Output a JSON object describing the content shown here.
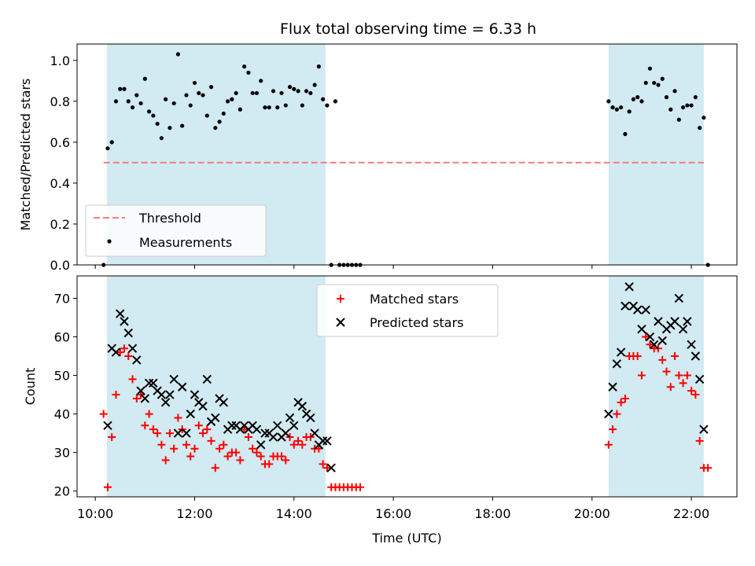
{
  "title": "Flux total observing time = 6.33 h",
  "colors": {
    "span": "#add8e6",
    "threshold": "#f08080",
    "measurement": "#000000",
    "matched": "#ff0000",
    "predicted": "#000000"
  },
  "chart_data": [
    {
      "type": "scatter",
      "ylabel": "Matched/Predicted stars",
      "xlabel": "",
      "xlim": [
        "09:38",
        "22:55"
      ],
      "ylim": [
        0,
        1.08
      ],
      "yticks": [
        "0.0",
        "0.2",
        "0.4",
        "0.6",
        "0.8",
        "1.0"
      ],
      "observing_windows": [
        [
          "10:14",
          "14:38"
        ],
        [
          "20:20",
          "22:15"
        ]
      ],
      "threshold": {
        "value": 0.5,
        "x_range": [
          "10:10",
          "22:15"
        ]
      },
      "legend": {
        "placement": "lower left",
        "entries": [
          "Threshold",
          "Measurements"
        ]
      },
      "series": [
        {
          "name": "Measurements",
          "points": [
            [
              "10:10",
              0.0
            ],
            [
              "10:15",
              0.57
            ],
            [
              "10:20",
              0.6
            ],
            [
              "10:25",
              0.8
            ],
            [
              "10:30",
              0.86
            ],
            [
              "10:35",
              0.86
            ],
            [
              "10:40",
              0.8
            ],
            [
              "10:45",
              0.77
            ],
            [
              "10:50",
              0.83
            ],
            [
              "10:55",
              0.79
            ],
            [
              "11:00",
              0.91
            ],
            [
              "11:05",
              0.75
            ],
            [
              "11:10",
              0.73
            ],
            [
              "11:15",
              0.69
            ],
            [
              "11:20",
              0.62
            ],
            [
              "11:25",
              0.81
            ],
            [
              "11:30",
              0.67
            ],
            [
              "11:35",
              0.79
            ],
            [
              "11:40",
              1.03
            ],
            [
              "11:45",
              0.68
            ],
            [
              "11:50",
              0.83
            ],
            [
              "11:55",
              0.78
            ],
            [
              "12:00",
              0.89
            ],
            [
              "12:05",
              0.84
            ],
            [
              "12:10",
              0.83
            ],
            [
              "12:15",
              0.73
            ],
            [
              "12:20",
              0.87
            ],
            [
              "12:25",
              0.67
            ],
            [
              "12:30",
              0.7
            ],
            [
              "12:35",
              0.74
            ],
            [
              "12:40",
              0.8
            ],
            [
              "12:45",
              0.81
            ],
            [
              "12:50",
              0.84
            ],
            [
              "12:55",
              0.76
            ],
            [
              "13:00",
              0.97
            ],
            [
              "13:05",
              0.94
            ],
            [
              "13:10",
              0.84
            ],
            [
              "13:15",
              0.84
            ],
            [
              "13:20",
              0.9
            ],
            [
              "13:25",
              0.77
            ],
            [
              "13:30",
              0.77
            ],
            [
              "13:35",
              0.85
            ],
            [
              "13:40",
              0.77
            ],
            [
              "13:45",
              0.84
            ],
            [
              "13:50",
              0.78
            ],
            [
              "13:55",
              0.87
            ],
            [
              "14:00",
              0.86
            ],
            [
              "14:05",
              0.85
            ],
            [
              "14:10",
              0.78
            ],
            [
              "14:15",
              0.85
            ],
            [
              "14:20",
              0.84
            ],
            [
              "14:25",
              0.88
            ],
            [
              "14:30",
              0.97
            ],
            [
              "14:35",
              0.81
            ],
            [
              "14:40",
              0.78
            ],
            [
              "14:45",
              0.0
            ],
            [
              "14:50",
              0.8
            ],
            [
              "14:55",
              0.0
            ],
            [
              "15:00",
              0.0
            ],
            [
              "15:05",
              0.0
            ],
            [
              "15:10",
              0.0
            ],
            [
              "15:15",
              0.0
            ],
            [
              "15:20",
              0.0
            ],
            [
              "20:20",
              0.8
            ],
            [
              "20:25",
              0.77
            ],
            [
              "20:30",
              0.76
            ],
            [
              "20:35",
              0.77
            ],
            [
              "20:40",
              0.64
            ],
            [
              "20:45",
              0.75
            ],
            [
              "20:50",
              0.81
            ],
            [
              "20:55",
              0.82
            ],
            [
              "21:00",
              0.8
            ],
            [
              "21:05",
              0.89
            ],
            [
              "21:10",
              0.96
            ],
            [
              "21:15",
              0.89
            ],
            [
              "21:20",
              0.88
            ],
            [
              "21:25",
              0.91
            ],
            [
              "21:30",
              0.82
            ],
            [
              "21:35",
              0.76
            ],
            [
              "21:40",
              0.85
            ],
            [
              "21:45",
              0.71
            ],
            [
              "21:50",
              0.77
            ],
            [
              "21:55",
              0.78
            ],
            [
              "22:00",
              0.78
            ],
            [
              "22:05",
              0.82
            ],
            [
              "22:10",
              0.67
            ],
            [
              "22:15",
              0.72
            ],
            [
              "22:20",
              0.0
            ]
          ]
        }
      ]
    },
    {
      "type": "scatter",
      "ylabel": "Count",
      "xlabel": "Time (UTC)",
      "xlim": [
        "09:38",
        "22:55"
      ],
      "ylim": [
        18.5,
        75.8
      ],
      "xticks": [
        "10:00",
        "12:00",
        "14:00",
        "16:00",
        "18:00",
        "20:00",
        "22:00"
      ],
      "yticks": [
        "20",
        "30",
        "40",
        "50",
        "60",
        "70"
      ],
      "observing_windows": [
        [
          "10:14",
          "14:38"
        ],
        [
          "20:20",
          "22:15"
        ]
      ],
      "legend": {
        "placement": "upper center",
        "entries": [
          "Matched stars",
          "Predicted stars"
        ]
      },
      "series": [
        {
          "name": "Matched stars",
          "points": [
            [
              "10:10",
              40
            ],
            [
              "10:15",
              21
            ],
            [
              "10:20",
              34
            ],
            [
              "10:25",
              45
            ],
            [
              "10:30",
              56
            ],
            [
              "10:35",
              57
            ],
            [
              "10:40",
              55
            ],
            [
              "10:45",
              49
            ],
            [
              "10:50",
              44
            ],
            [
              "10:55",
              45
            ],
            [
              "11:00",
              37
            ],
            [
              "11:05",
              40
            ],
            [
              "11:10",
              36
            ],
            [
              "11:15",
              35
            ],
            [
              "11:20",
              32
            ],
            [
              "11:25",
              28
            ],
            [
              "11:30",
              35
            ],
            [
              "11:35",
              31
            ],
            [
              "11:40",
              39
            ],
            [
              "11:45",
              36
            ],
            [
              "11:50",
              32
            ],
            [
              "11:55",
              29
            ],
            [
              "12:00",
              31
            ],
            [
              "12:05",
              37
            ],
            [
              "12:10",
              35
            ],
            [
              "12:15",
              36
            ],
            [
              "12:20",
              33
            ],
            [
              "12:25",
              26
            ],
            [
              "12:30",
              31
            ],
            [
              "12:35",
              32
            ],
            [
              "12:40",
              29
            ],
            [
              "12:45",
              30
            ],
            [
              "12:50",
              30
            ],
            [
              "12:55",
              28
            ],
            [
              "13:00",
              36
            ],
            [
              "13:05",
              34
            ],
            [
              "13:10",
              31
            ],
            [
              "13:15",
              30
            ],
            [
              "13:20",
              29
            ],
            [
              "13:25",
              27
            ],
            [
              "13:30",
              27
            ],
            [
              "13:35",
              29
            ],
            [
              "13:40",
              29
            ],
            [
              "13:45",
              29
            ],
            [
              "13:50",
              28
            ],
            [
              "13:55",
              34
            ],
            [
              "14:00",
              32
            ],
            [
              "14:05",
              33
            ],
            [
              "14:10",
              32
            ],
            [
              "14:15",
              34
            ],
            [
              "14:20",
              34
            ],
            [
              "14:25",
              31
            ],
            [
              "14:30",
              31
            ],
            [
              "14:35",
              27
            ],
            [
              "14:40",
              26
            ],
            [
              "14:45",
              21
            ],
            [
              "14:50",
              21
            ],
            [
              "14:55",
              21
            ],
            [
              "15:00",
              21
            ],
            [
              "15:05",
              21
            ],
            [
              "15:10",
              21
            ],
            [
              "15:15",
              21
            ],
            [
              "15:20",
              21
            ],
            [
              "20:20",
              32
            ],
            [
              "20:25",
              36
            ],
            [
              "20:30",
              40
            ],
            [
              "20:35",
              43
            ],
            [
              "20:40",
              44
            ],
            [
              "20:45",
              55
            ],
            [
              "20:50",
              55
            ],
            [
              "20:55",
              55
            ],
            [
              "21:00",
              50
            ],
            [
              "21:05",
              60
            ],
            [
              "21:10",
              58
            ],
            [
              "21:15",
              57
            ],
            [
              "21:20",
              57
            ],
            [
              "21:25",
              54
            ],
            [
              "21:30",
              51
            ],
            [
              "21:35",
              47
            ],
            [
              "21:40",
              55
            ],
            [
              "21:45",
              50
            ],
            [
              "21:50",
              48
            ],
            [
              "21:55",
              50
            ],
            [
              "22:00",
              46
            ],
            [
              "22:05",
              45
            ],
            [
              "22:10",
              33
            ],
            [
              "22:15",
              26
            ],
            [
              "22:20",
              26
            ]
          ]
        },
        {
          "name": "Predicted stars",
          "points": [
            [
              "10:15",
              37
            ],
            [
              "10:20",
              57
            ],
            [
              "10:25",
              56
            ],
            [
              "10:30",
              66
            ],
            [
              "10:35",
              64
            ],
            [
              "10:40",
              61
            ],
            [
              "10:45",
              57
            ],
            [
              "10:50",
              54
            ],
            [
              "10:55",
              46
            ],
            [
              "11:00",
              44
            ],
            [
              "11:05",
              48
            ],
            [
              "11:10",
              48
            ],
            [
              "11:15",
              46
            ],
            [
              "11:20",
              45
            ],
            [
              "11:25",
              43
            ],
            [
              "11:30",
              45
            ],
            [
              "11:35",
              49
            ],
            [
              "11:40",
              35
            ],
            [
              "11:45",
              47
            ],
            [
              "11:50",
              35
            ],
            [
              "11:55",
              40
            ],
            [
              "12:00",
              45
            ],
            [
              "12:05",
              43
            ],
            [
              "12:10",
              42
            ],
            [
              "12:15",
              49
            ],
            [
              "12:20",
              38
            ],
            [
              "12:25",
              39
            ],
            [
              "12:30",
              44
            ],
            [
              "12:35",
              43
            ],
            [
              "12:40",
              36
            ],
            [
              "12:45",
              37
            ],
            [
              "12:50",
              37
            ],
            [
              "12:55",
              36
            ],
            [
              "13:00",
              37
            ],
            [
              "13:05",
              36
            ],
            [
              "13:10",
              37
            ],
            [
              "13:15",
              36
            ],
            [
              "13:20",
              32
            ],
            [
              "13:25",
              35
            ],
            [
              "13:30",
              35
            ],
            [
              "13:35",
              34
            ],
            [
              "13:40",
              37
            ],
            [
              "13:45",
              34
            ],
            [
              "13:50",
              35
            ],
            [
              "13:55",
              39
            ],
            [
              "14:00",
              37
            ],
            [
              "14:05",
              43
            ],
            [
              "14:10",
              42
            ],
            [
              "14:15",
              40
            ],
            [
              "14:20",
              39
            ],
            [
              "14:25",
              35
            ],
            [
              "14:30",
              32
            ],
            [
              "14:35",
              33
            ],
            [
              "14:40",
              33
            ],
            [
              "14:45",
              26
            ],
            [
              "20:20",
              40
            ],
            [
              "20:25",
              47
            ],
            [
              "20:30",
              53
            ],
            [
              "20:35",
              56
            ],
            [
              "20:40",
              68
            ],
            [
              "20:45",
              73
            ],
            [
              "20:50",
              68
            ],
            [
              "20:55",
              67
            ],
            [
              "21:00",
              62
            ],
            [
              "21:05",
              67
            ],
            [
              "21:10",
              60
            ],
            [
              "21:15",
              58
            ],
            [
              "21:20",
              64
            ],
            [
              "21:25",
              59
            ],
            [
              "21:30",
              62
            ],
            [
              "21:35",
              63
            ],
            [
              "21:40",
              64
            ],
            [
              "21:45",
              70
            ],
            [
              "21:50",
              62
            ],
            [
              "21:55",
              64
            ],
            [
              "22:00",
              58
            ],
            [
              "22:05",
              55
            ],
            [
              "22:10",
              49
            ],
            [
              "22:15",
              36
            ]
          ]
        }
      ]
    }
  ]
}
